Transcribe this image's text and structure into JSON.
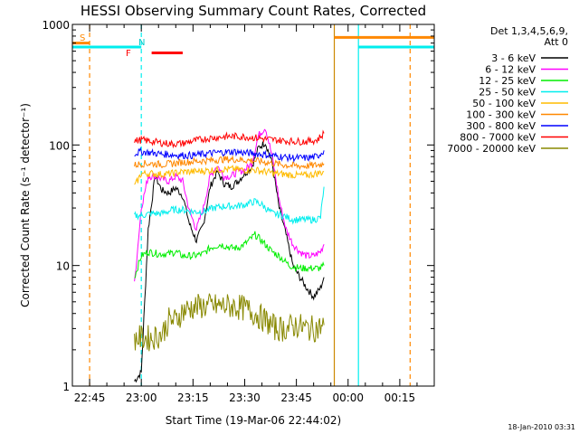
{
  "chart_data": {
    "type": "line",
    "title": "HESSI Observing Summary Count Rates, Corrected",
    "xlabel": "Start Time (19-Mar-06 22:44:02)",
    "ylabel": "Corrected Count Rate (s⁻¹ detector⁻¹)",
    "y_scale": "log",
    "ylim": [
      1,
      1000
    ],
    "xlim": [
      "22:40",
      "00:25"
    ],
    "x_unit": "time HH:MM (19-Mar-06, wraps past midnight)",
    "x_ticks": [
      "22:45",
      "23:00",
      "23:15",
      "23:30",
      "23:45",
      "00:00",
      "00:15"
    ],
    "y_ticks": [
      "1",
      "10",
      "100",
      "1000"
    ],
    "legend": {
      "placement": "right, outside plot",
      "header1": "Det 1,3,4,5,6,9,",
      "header2": "Att 0"
    },
    "series": [
      {
        "name": "3 - 6 keV",
        "color": "#000000",
        "points": [
          [
            "22:58",
            1.1
          ],
          [
            "23:00",
            1.3
          ],
          [
            "23:02",
            20
          ],
          [
            "23:04",
            55
          ],
          [
            "23:06",
            42
          ],
          [
            "23:08",
            40
          ],
          [
            "23:10",
            44
          ],
          [
            "23:12",
            38
          ],
          [
            "23:14",
            22
          ],
          [
            "23:16",
            16
          ],
          [
            "23:18",
            22
          ],
          [
            "23:20",
            45
          ],
          [
            "23:22",
            60
          ],
          [
            "23:24",
            48
          ],
          [
            "23:26",
            45
          ],
          [
            "23:28",
            50
          ],
          [
            "23:30",
            58
          ],
          [
            "23:32",
            65
          ],
          [
            "23:34",
            95
          ],
          [
            "23:36",
            105
          ],
          [
            "23:38",
            70
          ],
          [
            "23:40",
            30
          ],
          [
            "23:42",
            18
          ],
          [
            "23:44",
            10
          ],
          [
            "23:46",
            8
          ],
          [
            "23:48",
            6.5
          ],
          [
            "23:50",
            5.5
          ],
          [
            "23:52",
            6.5
          ],
          [
            "23:53",
            8
          ]
        ]
      },
      {
        "name": "6 - 12 keV",
        "color": "#ff00ff",
        "points": [
          [
            "22:58",
            7
          ],
          [
            "23:00",
            30
          ],
          [
            "23:02",
            55
          ],
          [
            "23:04",
            55
          ],
          [
            "23:06",
            52
          ],
          [
            "23:08",
            50
          ],
          [
            "23:10",
            55
          ],
          [
            "23:12",
            50
          ],
          [
            "23:14",
            28
          ],
          [
            "23:16",
            20
          ],
          [
            "23:18",
            30
          ],
          [
            "23:20",
            55
          ],
          [
            "23:22",
            68
          ],
          [
            "23:24",
            55
          ],
          [
            "23:26",
            55
          ],
          [
            "23:28",
            60
          ],
          [
            "23:30",
            62
          ],
          [
            "23:32",
            70
          ],
          [
            "23:34",
            120
          ],
          [
            "23:36",
            140
          ],
          [
            "23:38",
            80
          ],
          [
            "23:40",
            35
          ],
          [
            "23:42",
            20
          ],
          [
            "23:44",
            15
          ],
          [
            "23:46",
            13
          ],
          [
            "23:48",
            12
          ],
          [
            "23:50",
            12
          ],
          [
            "23:52",
            13
          ],
          [
            "23:53",
            15
          ]
        ]
      },
      {
        "name": "12 - 25 keV",
        "color": "#00ee00",
        "points": [
          [
            "22:58",
            8
          ],
          [
            "23:00",
            12
          ],
          [
            "23:02",
            13
          ],
          [
            "23:05",
            12.5
          ],
          [
            "23:08",
            12.5
          ],
          [
            "23:10",
            13
          ],
          [
            "23:12",
            12
          ],
          [
            "23:15",
            12
          ],
          [
            "23:18",
            12.5
          ],
          [
            "23:20",
            14
          ],
          [
            "23:23",
            15
          ],
          [
            "23:26",
            14
          ],
          [
            "23:28",
            14
          ],
          [
            "23:30",
            15
          ],
          [
            "23:33",
            18
          ],
          [
            "23:35",
            16
          ],
          [
            "23:38",
            13
          ],
          [
            "23:40",
            12
          ],
          [
            "23:43",
            10
          ],
          [
            "23:46",
            9.5
          ],
          [
            "23:49",
            9.5
          ],
          [
            "23:52",
            9.5
          ],
          [
            "23:53",
            10
          ]
        ]
      },
      {
        "name": "25 - 50 keV",
        "color": "#00eeee",
        "points": [
          [
            "22:58",
            26
          ],
          [
            "23:00",
            26
          ],
          [
            "23:03",
            27
          ],
          [
            "23:06",
            27
          ],
          [
            "23:09",
            29
          ],
          [
            "23:12",
            29
          ],
          [
            "23:15",
            28
          ],
          [
            "23:18",
            28
          ],
          [
            "23:21",
            30
          ],
          [
            "23:24",
            31
          ],
          [
            "23:27",
            31
          ],
          [
            "23:30",
            32
          ],
          [
            "23:33",
            34
          ],
          [
            "23:35",
            32
          ],
          [
            "23:38",
            27
          ],
          [
            "23:41",
            26
          ],
          [
            "23:44",
            24
          ],
          [
            "23:47",
            24
          ],
          [
            "23:50",
            24
          ],
          [
            "23:52",
            25
          ],
          [
            "23:53",
            45
          ]
        ]
      },
      {
        "name": "50 - 100 keV",
        "color": "#ffbb00",
        "points": [
          [
            "22:58",
            45
          ],
          [
            "23:00",
            58
          ],
          [
            "23:03",
            58
          ],
          [
            "23:06",
            57
          ],
          [
            "23:09",
            58
          ],
          [
            "23:12",
            60
          ],
          [
            "23:15",
            60
          ],
          [
            "23:18",
            61
          ],
          [
            "23:21",
            62
          ],
          [
            "23:24",
            63
          ],
          [
            "23:27",
            63
          ],
          [
            "23:30",
            62
          ],
          [
            "23:33",
            62
          ],
          [
            "23:36",
            60
          ],
          [
            "23:39",
            58
          ],
          [
            "23:42",
            57
          ],
          [
            "23:45",
            56
          ],
          [
            "23:48",
            56
          ],
          [
            "23:51",
            58
          ],
          [
            "23:53",
            60
          ]
        ]
      },
      {
        "name": "100 - 300 keV",
        "color": "#ff8800",
        "points": [
          [
            "22:58",
            68
          ],
          [
            "23:00",
            70
          ],
          [
            "23:03",
            70
          ],
          [
            "23:06",
            69
          ],
          [
            "23:09",
            70
          ],
          [
            "23:12",
            72
          ],
          [
            "23:15",
            73
          ],
          [
            "23:18",
            74
          ],
          [
            "23:21",
            75
          ],
          [
            "23:24",
            76
          ],
          [
            "23:27",
            76
          ],
          [
            "23:30",
            75
          ],
          [
            "23:33",
            74
          ],
          [
            "23:36",
            72
          ],
          [
            "23:39",
            70
          ],
          [
            "23:42",
            68
          ],
          [
            "23:45",
            67
          ],
          [
            "23:48",
            67
          ],
          [
            "23:51",
            68
          ],
          [
            "23:53",
            70
          ]
        ]
      },
      {
        "name": "300 - 800 keV",
        "color": "#0000ff",
        "points": [
          [
            "22:58",
            85
          ],
          [
            "23:00",
            88
          ],
          [
            "23:03",
            86
          ],
          [
            "23:06",
            84
          ],
          [
            "23:09",
            83
          ],
          [
            "23:12",
            82
          ],
          [
            "23:15",
            82
          ],
          [
            "23:18",
            84
          ],
          [
            "23:21",
            86
          ],
          [
            "23:24",
            87
          ],
          [
            "23:27",
            88
          ],
          [
            "23:30",
            86
          ],
          [
            "23:33",
            85
          ],
          [
            "23:36",
            83
          ],
          [
            "23:39",
            81
          ],
          [
            "23:42",
            79
          ],
          [
            "23:45",
            78
          ],
          [
            "23:48",
            78
          ],
          [
            "23:51",
            80
          ],
          [
            "23:53",
            90
          ]
        ]
      },
      {
        "name": "800 - 7000 keV",
        "color": "#ff0000",
        "points": [
          [
            "22:58",
            108
          ],
          [
            "23:00",
            110
          ],
          [
            "23:03",
            107
          ],
          [
            "23:06",
            104
          ],
          [
            "23:09",
            102
          ],
          [
            "23:12",
            103
          ],
          [
            "23:15",
            108
          ],
          [
            "23:18",
            112
          ],
          [
            "23:21",
            115
          ],
          [
            "23:24",
            117
          ],
          [
            "23:27",
            118
          ],
          [
            "23:30",
            117
          ],
          [
            "23:33",
            115
          ],
          [
            "23:36",
            112
          ],
          [
            "23:39",
            110
          ],
          [
            "23:42",
            108
          ],
          [
            "23:45",
            107
          ],
          [
            "23:48",
            107
          ],
          [
            "23:51",
            110
          ],
          [
            "23:53",
            125
          ]
        ]
      },
      {
        "name": "7000 - 20000 keV",
        "color": "#888800",
        "points": [
          [
            "22:58",
            2.5
          ],
          [
            "23:00",
            2.5
          ],
          [
            "23:03",
            2.5
          ],
          [
            "23:06",
            2.7
          ],
          [
            "23:08",
            3.5
          ],
          [
            "23:10",
            3.5
          ],
          [
            "23:12",
            4.2
          ],
          [
            "23:15",
            4.5
          ],
          [
            "23:18",
            4.6
          ],
          [
            "23:21",
            4.6
          ],
          [
            "23:24",
            4.6
          ],
          [
            "23:27",
            4.6
          ],
          [
            "23:30",
            4.4
          ],
          [
            "23:33",
            4.0
          ],
          [
            "23:36",
            3.5
          ],
          [
            "23:39",
            3.0
          ],
          [
            "23:42",
            3.0
          ],
          [
            "23:45",
            3.2
          ],
          [
            "23:48",
            3.0
          ],
          [
            "23:51",
            3.0
          ],
          [
            "23:53",
            3.2
          ]
        ]
      }
    ],
    "annotations": {
      "s_label": "S",
      "n_label": "N",
      "f_label": "F",
      "timestamp": "18-Jan-2010 03:31"
    },
    "flags": [
      {
        "name": "SAA",
        "color": "#ff8800",
        "level": 700,
        "from": "22:40",
        "to": "22:45"
      },
      {
        "name": "Night",
        "color": "#00eeee",
        "level": 650,
        "from": "22:40",
        "to": "23:00"
      },
      {
        "name": "Flare",
        "color": "#ff0000",
        "level": 580,
        "from": "23:03",
        "to": "23:12"
      },
      {
        "name": "SAA",
        "color": "#ff8800",
        "level": 780,
        "from": "23:56",
        "to": "00:25"
      },
      {
        "name": "Night",
        "color": "#00eeee",
        "level": 650,
        "from": "00:03",
        "to": "00:25"
      }
    ],
    "vertical_markers": [
      {
        "time": "22:45",
        "color": "#ff8800",
        "style": "dashed"
      },
      {
        "time": "23:00",
        "color": "#00eeee",
        "style": "dashed"
      },
      {
        "time": "23:56",
        "color": "#cc8800",
        "style": "solid"
      },
      {
        "time": "00:03",
        "color": "#00eeee",
        "style": "solid"
      },
      {
        "time": "00:18",
        "color": "#ff8800",
        "style": "dashed"
      }
    ]
  }
}
